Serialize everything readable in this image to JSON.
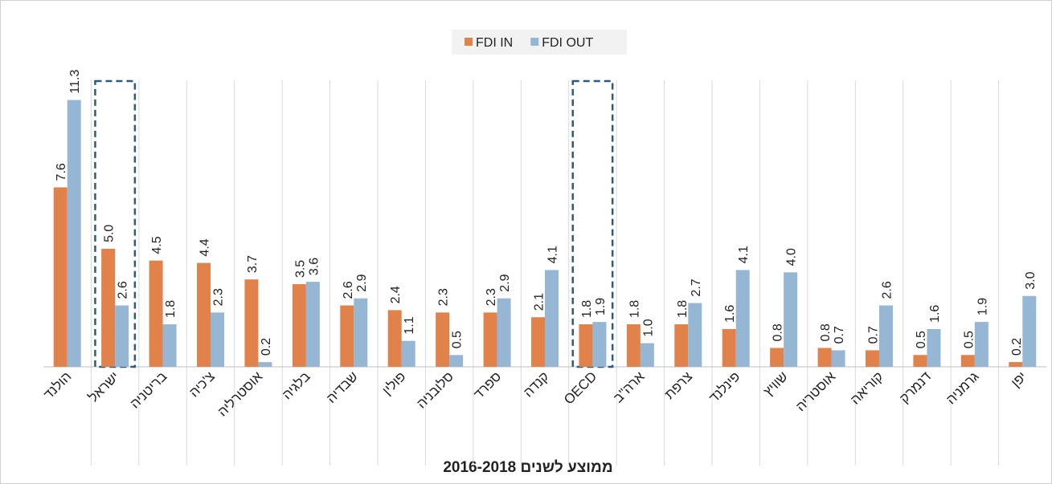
{
  "chart_data": {
    "type": "bar",
    "title": "ממוצע לשנים 2016-2018",
    "categories": [
      "הולנד",
      "ישראל",
      "בריטניה",
      "צ'כיה",
      "אוסטרליה",
      "בלגיה",
      "שבדיה",
      "פולין",
      "סלובניה",
      "ספרד",
      "קנדה",
      "OECD",
      "ארה\"ב",
      "צרפת",
      "פינלנד",
      "שוויץ",
      "אוסטריה",
      "קוריאה",
      "דנמרק",
      "גרמניה",
      "יפן"
    ],
    "series": [
      {
        "name": "FDI IN",
        "color": "#e0824a",
        "values": [
          7.6,
          5.0,
          4.5,
          4.4,
          3.7,
          3.5,
          2.6,
          2.4,
          2.3,
          2.3,
          2.1,
          1.8,
          1.8,
          1.8,
          1.6,
          0.8,
          0.8,
          0.7,
          0.5,
          0.5,
          0.2
        ],
        "value_labels": [
          "7.6",
          "5.0",
          "4.5",
          "4.4",
          "3.7",
          "3.5",
          "2.6",
          "2.4",
          "2.3",
          "2.3",
          "2.1",
          "1.8",
          "1.8",
          "1.8",
          "1.6",
          "0.8",
          "0.8",
          "0.7",
          "0.5",
          "0.5",
          "0.2"
        ]
      },
      {
        "name": "FDI OUT",
        "color": "#95b7d4",
        "values": [
          11.3,
          2.6,
          1.8,
          2.3,
          0.2,
          3.6,
          2.9,
          1.1,
          0.5,
          2.9,
          4.1,
          1.9,
          1.0,
          2.7,
          4.1,
          4.0,
          0.7,
          2.6,
          1.6,
          1.9,
          3.0
        ],
        "value_labels": [
          "11.3",
          "2.6",
          "1.8",
          "2.3",
          "0.2",
          "3.6",
          "2.9",
          "1.1",
          "0.5",
          "2.9",
          "4.1",
          "1.9",
          "1.0",
          "2.7",
          "4.1",
          "4.0",
          "0.7",
          "2.6",
          "1.6",
          "1.9",
          "3.0"
        ]
      }
    ],
    "ylim": [
      0,
      12
    ],
    "highlighted": [
      1,
      11
    ],
    "legend": "top"
  }
}
